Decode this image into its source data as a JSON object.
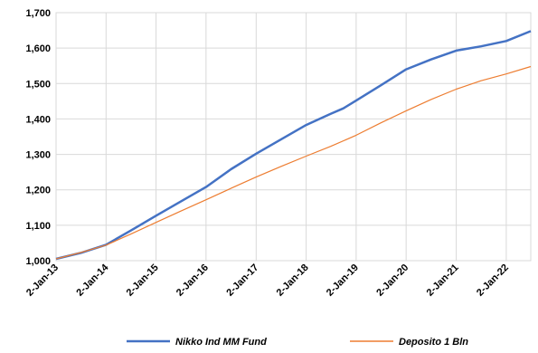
{
  "chart_data": {
    "type": "line",
    "title": "",
    "xlabel": "",
    "ylabel": "",
    "ylim": [
      1000,
      1700
    ],
    "yticks": [
      "1,000",
      "1,100",
      "1,200",
      "1,300",
      "1,400",
      "1,500",
      "1,600",
      "1,700"
    ],
    "xlim": [
      "2013-01-02",
      "2022-06-30"
    ],
    "xticks": [
      "2-Jan-13",
      "2-Jan-14",
      "2-Jan-15",
      "2-Jan-16",
      "2-Jan-17",
      "2-Jan-18",
      "2-Jan-19",
      "2-Jan-20",
      "2-Jan-21",
      "2-Jan-22"
    ],
    "grid": true,
    "legend_position": "bottom",
    "series": [
      {
        "name": "Nikko Ind MM Fund",
        "color": "#4472C4",
        "points": [
          [
            "2013-01-02",
            1005
          ],
          [
            "2013-07-02",
            1022
          ],
          [
            "2014-01-02",
            1045
          ],
          [
            "2014-07-02",
            1085
          ],
          [
            "2015-01-02",
            1127
          ],
          [
            "2015-07-02",
            1167
          ],
          [
            "2016-01-02",
            1208
          ],
          [
            "2016-07-02",
            1258
          ],
          [
            "2017-01-02",
            1302
          ],
          [
            "2017-07-02",
            1342
          ],
          [
            "2018-01-02",
            1383
          ],
          [
            "2018-07-02",
            1415
          ],
          [
            "2018-10-01",
            1430
          ],
          [
            "2019-01-02",
            1452
          ],
          [
            "2019-07-02",
            1495
          ],
          [
            "2020-01-02",
            1540
          ],
          [
            "2020-07-02",
            1568
          ],
          [
            "2021-01-02",
            1593
          ],
          [
            "2021-07-02",
            1605
          ],
          [
            "2022-01-02",
            1620
          ],
          [
            "2022-06-30",
            1648
          ]
        ]
      },
      {
        "name": "Deposito 1 Bln",
        "color": "#ED7D31",
        "points": [
          [
            "2013-01-02",
            1005
          ],
          [
            "2013-07-02",
            1023
          ],
          [
            "2014-01-02",
            1044
          ],
          [
            "2014-07-02",
            1075
          ],
          [
            "2015-01-02",
            1108
          ],
          [
            "2015-07-02",
            1140
          ],
          [
            "2016-01-02",
            1172
          ],
          [
            "2016-07-02",
            1204
          ],
          [
            "2017-01-02",
            1236
          ],
          [
            "2017-07-02",
            1266
          ],
          [
            "2018-01-02",
            1295
          ],
          [
            "2018-07-02",
            1323
          ],
          [
            "2019-01-02",
            1354
          ],
          [
            "2019-07-02",
            1389
          ],
          [
            "2020-01-02",
            1423
          ],
          [
            "2020-07-02",
            1455
          ],
          [
            "2021-01-02",
            1484
          ],
          [
            "2021-07-02",
            1508
          ],
          [
            "2022-01-02",
            1527
          ],
          [
            "2022-06-30",
            1548
          ]
        ]
      }
    ]
  }
}
